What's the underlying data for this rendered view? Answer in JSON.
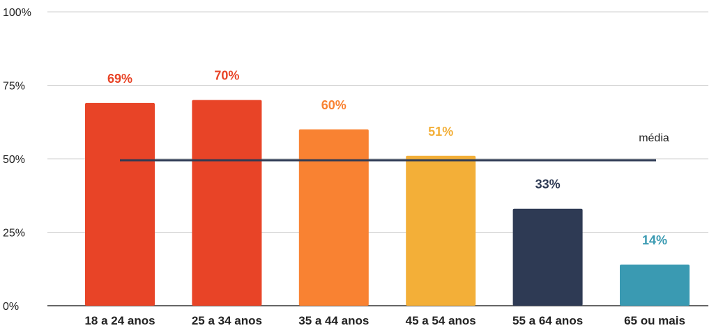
{
  "chart_data": {
    "type": "bar",
    "categories": [
      "18 a 24 anos",
      "25 a 34 anos",
      "35 a 44 anos",
      "45 a 54 anos",
      "55 a 64 anos",
      "65 ou mais"
    ],
    "values": [
      69,
      70,
      60,
      51,
      33,
      14
    ],
    "data_labels": [
      "69%",
      "70%",
      "60%",
      "51%",
      "33%",
      "14%"
    ],
    "colors": [
      "#E84427",
      "#E84427",
      "#F98232",
      "#F3AF38",
      "#2E3A54",
      "#3A9AB2"
    ],
    "ylim": [
      0,
      100
    ],
    "yticks": [
      0,
      25,
      50,
      75,
      100
    ],
    "ytick_labels": [
      "0%",
      "25%",
      "50%",
      "75%",
      "100%"
    ],
    "grid": true,
    "reference_line": {
      "label": "média",
      "value": 49.5,
      "color": "#2E3A54"
    },
    "title": "",
    "xlabel": "",
    "ylabel": ""
  }
}
